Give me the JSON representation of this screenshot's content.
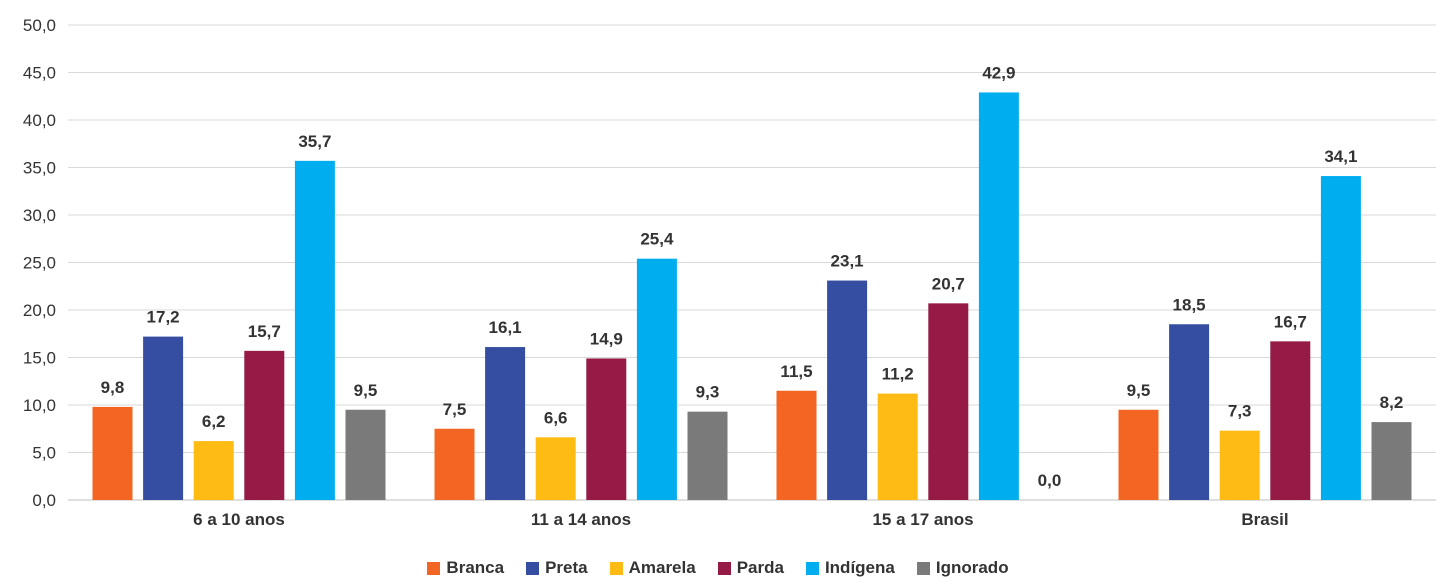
{
  "chart_data": {
    "type": "bar",
    "categories": [
      "6 a 10 anos",
      "11 a 14 anos",
      "15 a 17 anos",
      "Brasil"
    ],
    "series": [
      {
        "name": "Branca",
        "color": "#f26522",
        "values": [
          9.8,
          7.5,
          11.5,
          9.5
        ]
      },
      {
        "name": "Preta",
        "color": "#364ea2",
        "values": [
          17.2,
          16.1,
          23.1,
          18.5
        ]
      },
      {
        "name": "Amarela",
        "color": "#fdbb13",
        "values": [
          6.2,
          6.6,
          11.2,
          7.3
        ]
      },
      {
        "name": "Parda",
        "color": "#951a46",
        "values": [
          15.7,
          14.9,
          20.7,
          16.7
        ]
      },
      {
        "name": "Indígena",
        "color": "#00aeef",
        "values": [
          35.7,
          25.4,
          42.9,
          34.1
        ]
      },
      {
        "name": "Ignorado",
        "color": "#7a7a7a",
        "values": [
          9.5,
          9.3,
          0.0,
          8.2
        ]
      }
    ],
    "data_labels": [
      [
        "9,8",
        "7,5",
        "11,5",
        "9,5"
      ],
      [
        "17,2",
        "16,1",
        "23,1",
        "18,5"
      ],
      [
        "6,2",
        "6,6",
        "11,2",
        "7,3"
      ],
      [
        "15,7",
        "14,9",
        "20,7",
        "16,7"
      ],
      [
        "35,7",
        "25,4",
        "42,9",
        "34,1"
      ],
      [
        "9,5",
        "9,3",
        "0,0",
        "8,2"
      ]
    ],
    "y_ticks": [
      "0,0",
      "5,0",
      "10,0",
      "15,0",
      "20,0",
      "25,0",
      "30,0",
      "35,0",
      "40,0",
      "45,0",
      "50,0"
    ],
    "ylim": [
      0,
      50
    ],
    "grid": true,
    "legend_position": "bottom",
    "title": "",
    "xlabel": "",
    "ylabel": ""
  }
}
